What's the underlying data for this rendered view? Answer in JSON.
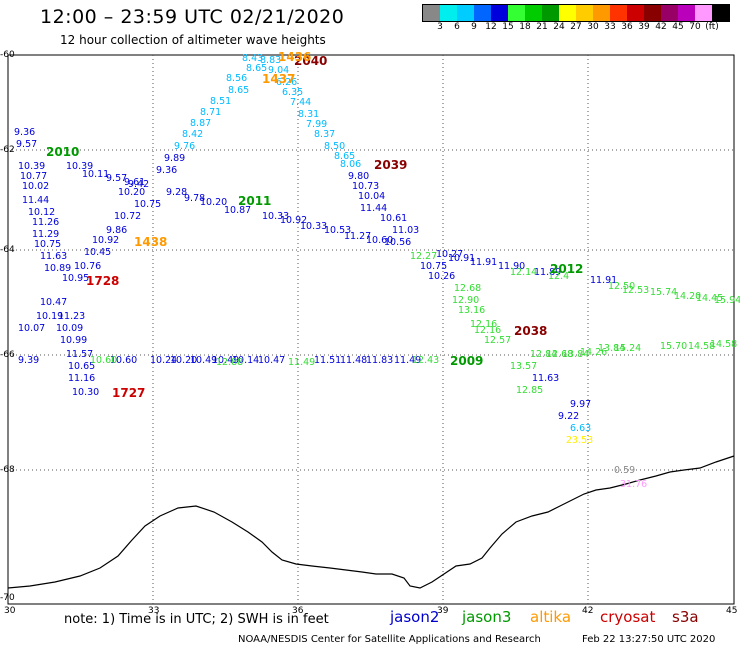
{
  "title": "12:00 – 23:59 UTC 02/21/2020",
  "subtitle": "12 hour collection of altimeter wave heights",
  "colorbar": {
    "colors": [
      "#888888",
      "#00eeee",
      "#00ccff",
      "#0066ff",
      "#0000dd",
      "#33ff33",
      "#00cc00",
      "#009900",
      "#ffff00",
      "#ffcc00",
      "#ff9900",
      "#ff3300",
      "#cc0000",
      "#880000",
      "#990066",
      "#bb00bb",
      "#ff99ff",
      "#000000"
    ],
    "labels": [
      "3",
      "6",
      "9",
      "12",
      "15",
      "18",
      "21",
      "24",
      "27",
      "30",
      "33",
      "36",
      "39",
      "42",
      "45",
      "70",
      "(ft)"
    ]
  },
  "axes": {
    "y_labels": [
      "-60",
      "-62",
      "-64",
      "-66",
      "-68",
      "-70"
    ],
    "x_labels": [
      "30",
      "33",
      "36",
      "39",
      "42",
      "45"
    ]
  },
  "note": "note: 1) Time is in UTC; 2) SWH is in feet",
  "missions": [
    {
      "name": "jason2",
      "color": "#0000cc"
    },
    {
      "name": "jason3",
      "color": "#009900"
    },
    {
      "name": "altika",
      "color": "#ff9900"
    },
    {
      "name": "cryosat",
      "color": "#cc0000"
    },
    {
      "name": "s3a",
      "color": "#880000"
    }
  ],
  "credit": "NOAA/NESDIS Center for Satellite Applications and Research",
  "credit_timestamp": "Feb 22 13:27:50 UTC 2020",
  "pass_times": [
    {
      "text": "2040",
      "color": "#880000"
    },
    {
      "text": "1436",
      "color": "#ff9900"
    },
    {
      "text": "1437",
      "color": "#ff9900"
    },
    {
      "text": "2010",
      "color": "#009900"
    },
    {
      "text": "2039",
      "color": "#880000"
    },
    {
      "text": "2011",
      "color": "#009900"
    },
    {
      "text": "1438",
      "color": "#ff9900"
    },
    {
      "text": "1728",
      "color": "#cc0000"
    },
    {
      "text": "2012",
      "color": "#009900"
    },
    {
      "text": "2038",
      "color": "#880000"
    },
    {
      "text": "2009",
      "color": "#009900"
    },
    {
      "text": "1727",
      "color": "#cc0000"
    }
  ],
  "observations": [
    {
      "v": "8.43",
      "c": "#00bbff"
    },
    {
      "v": "8.83",
      "c": "#00bbff"
    },
    {
      "v": "8.65",
      "c": "#00bbff"
    },
    {
      "v": "9.04",
      "c": "#00bbff"
    },
    {
      "v": "8.56",
      "c": "#00bbff"
    },
    {
      "v": "6.26",
      "c": "#00bbff"
    },
    {
      "v": "8.65",
      "c": "#00bbff"
    },
    {
      "v": "6.35",
      "c": "#00bbff"
    },
    {
      "v": "8.51",
      "c": "#00bbff"
    },
    {
      "v": "7.44",
      "c": "#00bbff"
    },
    {
      "v": "8.71",
      "c": "#00bbff"
    },
    {
      "v": "8.31",
      "c": "#00bbff"
    },
    {
      "v": "8.87",
      "c": "#00bbff"
    },
    {
      "v": "7.99",
      "c": "#00bbff"
    },
    {
      "v": "8.42",
      "c": "#00bbff"
    },
    {
      "v": "8.37",
      "c": "#00bbff"
    },
    {
      "v": "9.76",
      "c": "#00bbff"
    },
    {
      "v": "8.50",
      "c": "#00bbff"
    },
    {
      "v": "9.89",
      "c": "#0000dd"
    },
    {
      "v": "8.65",
      "c": "#00bbff"
    },
    {
      "v": "9.36",
      "c": "#0000dd"
    },
    {
      "v": "8.06",
      "c": "#00bbff"
    },
    {
      "v": "9.80",
      "c": "#0000dd"
    },
    {
      "v": "10.73",
      "c": "#0000dd"
    },
    {
      "v": "10.04",
      "c": "#0000dd"
    },
    {
      "v": "11.44",
      "c": "#0000dd"
    },
    {
      "v": "10.61",
      "c": "#0000dd"
    },
    {
      "v": "11.03",
      "c": "#0000dd"
    },
    {
      "v": "9.36",
      "c": "#0000dd"
    },
    {
      "v": "9.57",
      "c": "#0000dd"
    },
    {
      "v": "10.39",
      "c": "#0000dd"
    },
    {
      "v": "10.39",
      "c": "#0000dd"
    },
    {
      "v": "10.77",
      "c": "#0000dd"
    },
    {
      "v": "10.11",
      "c": "#0000dd"
    },
    {
      "v": "9.57",
      "c": "#0000dd"
    },
    {
      "v": "9.61",
      "c": "#0000dd"
    },
    {
      "v": "10.02",
      "c": "#0000dd"
    },
    {
      "v": "9.42",
      "c": "#0000dd"
    },
    {
      "v": "10.20",
      "c": "#0000dd"
    },
    {
      "v": "9.28",
      "c": "#0000dd"
    },
    {
      "v": "11.44",
      "c": "#0000dd"
    },
    {
      "v": "10.75",
      "c": "#0000dd"
    },
    {
      "v": "9.78",
      "c": "#0000dd"
    },
    {
      "v": "10.20",
      "c": "#0000dd"
    },
    {
      "v": "10.12",
      "c": "#0000dd"
    },
    {
      "v": "10.72",
      "c": "#0000dd"
    },
    {
      "v": "10.87",
      "c": "#0000dd"
    },
    {
      "v": "10.33",
      "c": "#0000dd"
    },
    {
      "v": "11.26",
      "c": "#0000dd"
    },
    {
      "v": "9.86",
      "c": "#0000dd"
    },
    {
      "v": "10.92",
      "c": "#0000dd"
    },
    {
      "v": "10.33",
      "c": "#0000dd"
    },
    {
      "v": "11.29",
      "c": "#0000dd"
    },
    {
      "v": "10.92",
      "c": "#0000dd"
    },
    {
      "v": "10.53",
      "c": "#0000dd"
    },
    {
      "v": "11.27",
      "c": "#0000dd"
    },
    {
      "v": "10.75",
      "c": "#0000dd"
    },
    {
      "v": "10.45",
      "c": "#0000dd"
    },
    {
      "v": "10.60",
      "c": "#0000dd"
    },
    {
      "v": "10.56",
      "c": "#0000dd"
    },
    {
      "v": "11.63",
      "c": "#0000dd"
    },
    {
      "v": "10.76",
      "c": "#0000dd"
    },
    {
      "v": "10.89",
      "c": "#0000dd"
    },
    {
      "v": "10.95",
      "c": "#0000dd"
    },
    {
      "v": "10.27",
      "c": "#0000dd"
    },
    {
      "v": "10.91",
      "c": "#0000dd"
    },
    {
      "v": "11.91",
      "c": "#0000dd"
    },
    {
      "v": "11.90",
      "c": "#0000dd"
    },
    {
      "v": "10.75",
      "c": "#0000dd"
    },
    {
      "v": "11.89",
      "c": "#0000dd"
    },
    {
      "v": "10.26",
      "c": "#0000dd"
    },
    {
      "v": "11.91",
      "c": "#0000dd"
    },
    {
      "v": "10.47",
      "c": "#0000dd"
    },
    {
      "v": "10.19",
      "c": "#0000dd"
    },
    {
      "v": "11.23",
      "c": "#0000dd"
    },
    {
      "v": "10.07",
      "c": "#0000dd"
    },
    {
      "v": "10.09",
      "c": "#0000dd"
    },
    {
      "v": "10.99",
      "c": "#0000dd"
    },
    {
      "v": "11.57",
      "c": "#0000dd"
    },
    {
      "v": "11.16",
      "c": "#0000dd"
    },
    {
      "v": "10.30",
      "c": "#0000dd"
    },
    {
      "v": "9.39",
      "c": "#0000dd"
    },
    {
      "v": "10.60",
      "c": "#0000dd"
    },
    {
      "v": "10.24",
      "c": "#0000dd"
    },
    {
      "v": "10.20",
      "c": "#0000dd"
    },
    {
      "v": "10.49",
      "c": "#0000dd"
    },
    {
      "v": "10.49",
      "c": "#0000dd"
    },
    {
      "v": "10.14",
      "c": "#0000dd"
    },
    {
      "v": "10.47",
      "c": "#0000dd"
    },
    {
      "v": "11.51",
      "c": "#0000dd"
    },
    {
      "v": "11.48",
      "c": "#0000dd"
    },
    {
      "v": "11.83",
      "c": "#0000dd"
    },
    {
      "v": "11.49",
      "c": "#0000dd"
    },
    {
      "v": "11.63",
      "c": "#0000dd"
    },
    {
      "v": "9.97",
      "c": "#0000dd"
    },
    {
      "v": "9.22",
      "c": "#0000dd"
    },
    {
      "v": "10.65",
      "c": "#0000dd"
    },
    {
      "v": "12.88",
      "c": "#33dd33"
    },
    {
      "v": "12.68",
      "c": "#33dd33"
    },
    {
      "v": "12.90",
      "c": "#33dd33"
    },
    {
      "v": "13.16",
      "c": "#33dd33"
    },
    {
      "v": "12.16",
      "c": "#33dd33"
    },
    {
      "v": "12.16",
      "c": "#33dd33"
    },
    {
      "v": "12.57",
      "c": "#33dd33"
    },
    {
      "v": "13.57",
      "c": "#33dd33"
    },
    {
      "v": "12.85",
      "c": "#33dd33"
    },
    {
      "v": "12.84",
      "c": "#33dd33"
    },
    {
      "v": "12.68",
      "c": "#33dd33"
    },
    {
      "v": "13.84",
      "c": "#33dd33"
    },
    {
      "v": "14.26",
      "c": "#33dd33"
    },
    {
      "v": "13.84",
      "c": "#33dd33"
    },
    {
      "v": "15.24",
      "c": "#33dd33"
    },
    {
      "v": "15.70",
      "c": "#33dd33"
    },
    {
      "v": "14.58",
      "c": "#33dd33"
    },
    {
      "v": "14.58",
      "c": "#33dd33"
    },
    {
      "v": "12.50",
      "c": "#33dd33"
    },
    {
      "v": "12.53",
      "c": "#33dd33"
    },
    {
      "v": "15.74",
      "c": "#33dd33"
    },
    {
      "v": "14.20",
      "c": "#33dd33"
    },
    {
      "v": "14.45",
      "c": "#33dd33"
    },
    {
      "v": "15.94",
      "c": "#33dd33"
    },
    {
      "v": "12.14",
      "c": "#33dd33"
    },
    {
      "v": "12.4",
      "c": "#33dd33"
    },
    {
      "v": "11.49",
      "c": "#33dd33"
    },
    {
      "v": "12.43",
      "c": "#33dd33"
    },
    {
      "v": "12.27",
      "c": "#33dd33"
    },
    {
      "v": "6.63",
      "c": "#00bbff"
    },
    {
      "v": "23.53",
      "c": "#ffee00"
    },
    {
      "v": "0.59",
      "c": "#888888"
    },
    {
      "v": "31.76",
      "c": "#ff99ff"
    },
    {
      "v": "10.60",
      "c": "#33dd33"
    }
  ]
}
